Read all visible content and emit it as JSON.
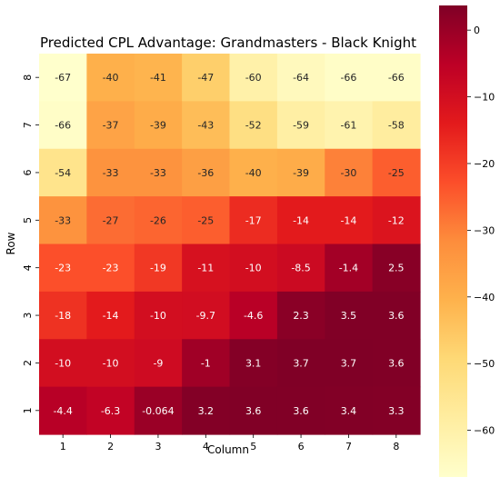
{
  "chart_data": {
    "type": "heatmap",
    "title": "Predicted CPL Advantage: Grandmasters - Black Knight",
    "xlabel": "Column",
    "ylabel": "Row",
    "columns": [
      "1",
      "2",
      "3",
      "4",
      "5",
      "6",
      "7",
      "8"
    ],
    "rows": [
      "8",
      "7",
      "6",
      "5",
      "4",
      "3",
      "2",
      "1"
    ],
    "values": [
      [
        -67,
        -40,
        -41,
        -47,
        -60,
        -64,
        -66,
        -66
      ],
      [
        -66,
        -37,
        -39,
        -43,
        -52,
        -59,
        -61,
        -58
      ],
      [
        -54,
        -33,
        -33,
        -36,
        -40,
        -39,
        -30,
        -25
      ],
      [
        -33,
        -27,
        -26,
        -25,
        -17,
        -14,
        -14,
        -12
      ],
      [
        -23,
        -23,
        -19,
        -11,
        -10,
        -8.5,
        -1.4,
        2.5
      ],
      [
        -18,
        -14,
        -10,
        -9.7,
        -4.6,
        2.3,
        3.5,
        3.6
      ],
      [
        -10,
        -10,
        -9,
        -1,
        3.1,
        3.7,
        3.7,
        3.6
      ],
      [
        -4.4,
        -6.3,
        -0.064,
        3.2,
        3.6,
        3.6,
        3.4,
        3.3
      ]
    ],
    "cell_labels": [
      [
        "-67",
        "-40",
        "-41",
        "-47",
        "-60",
        "-64",
        "-66",
        "-66"
      ],
      [
        "-66",
        "-37",
        "-39",
        "-43",
        "-52",
        "-59",
        "-61",
        "-58"
      ],
      [
        "-54",
        "-33",
        "-33",
        "-36",
        "-40",
        "-39",
        "-30",
        "-25"
      ],
      [
        "-33",
        "-27",
        "-26",
        "-25",
        "-17",
        "-14",
        "-14",
        "-12"
      ],
      [
        "-23",
        "-23",
        "-19",
        "-11",
        "-10",
        "-8.5",
        "-1.4",
        "2.5"
      ],
      [
        "-18",
        "-14",
        "-10",
        "-9.7",
        "-4.6",
        "2.3",
        "3.5",
        "3.6"
      ],
      [
        "-10",
        "-10",
        "-9",
        "-1",
        "3.1",
        "3.7",
        "3.7",
        "3.6"
      ],
      [
        "-4.4",
        "-6.3",
        "-0.064",
        "3.2",
        "3.6",
        "3.6",
        "3.4",
        "3.3"
      ]
    ],
    "colorbar": {
      "vmin": -67,
      "vmax": 3.7,
      "ticks": [
        0,
        -10,
        -20,
        -30,
        -40,
        -50,
        -60
      ],
      "tick_labels": [
        "0",
        "−10",
        "−20",
        "−30",
        "−40",
        "−50",
        "−60"
      ],
      "colormap": "YlOrRd",
      "colormap_stops": [
        "#ffffcc",
        "#ffeda0",
        "#fed976",
        "#feb24c",
        "#fd8d3c",
        "#fc4e2a",
        "#e31a1c",
        "#bd0026",
        "#800026"
      ]
    },
    "text_dark_color": "#262626",
    "text_light_color": "#ffffff",
    "grid": false,
    "legend": "colorbar-right"
  }
}
